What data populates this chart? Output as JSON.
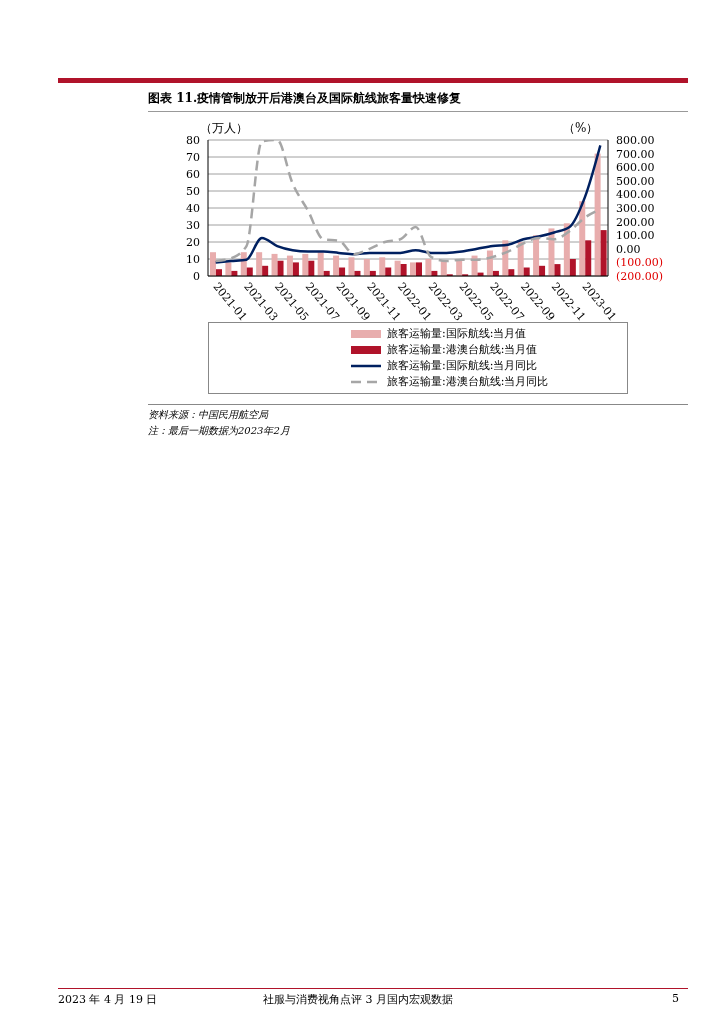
{
  "chart_data": {
    "type": "bar",
    "title": "图表 11.疫情管制放开后港澳台及国际航线旅客量快速修复",
    "ylabel": "（万人）",
    "y2label": "（%）",
    "categories": [
      "2021-01",
      null,
      "2021-03",
      null,
      "2021-05",
      null,
      "2021-07",
      null,
      "2021-09",
      null,
      "2021-11",
      null,
      "2022-01",
      null,
      "2022-03",
      null,
      "2022-05",
      null,
      "2022-07",
      null,
      "2022-09",
      null,
      "2022-11",
      null,
      "2023-01",
      null
    ],
    "series": [
      {
        "name": "旅客运输量:国际航线:当月值",
        "color": "#e8adad",
        "values": [
          14,
          8,
          14,
          14,
          13,
          12,
          13,
          14,
          12,
          11,
          10,
          11,
          9,
          8,
          10,
          9,
          9,
          12,
          15,
          21,
          20,
          24,
          28,
          31,
          44,
          72
        ]
      },
      {
        "name": "旅客运输量:港澳台航线:当月值",
        "color": "#b0132a",
        "values": [
          4,
          3,
          5,
          6,
          9,
          8,
          9,
          3,
          5,
          3,
          3,
          5,
          7,
          8,
          3,
          1,
          1,
          2,
          3,
          4,
          5,
          6,
          7,
          10,
          21,
          27
        ]
      },
      {
        "name": "旅客运输量:国际航线:当月同比",
        "type": "line",
        "axis": "y2",
        "color": "#002060",
        "line_style": "solid",
        "values": [
          -100,
          -90,
          -80,
          80,
          20,
          -10,
          -20,
          -20,
          -30,
          -40,
          -30,
          -30,
          -30,
          -10,
          -30,
          -30,
          -20,
          0,
          20,
          30,
          70,
          90,
          120,
          160,
          380,
          760
        ]
      },
      {
        "name": "旅客运输量:港澳台航线:当月同比",
        "type": "line",
        "axis": "y2",
        "color": "#a6a6a6",
        "line_style": "dashed",
        "values": [
          -90,
          -70,
          20,
          790,
          800,
          480,
          280,
          70,
          60,
          -40,
          0,
          50,
          70,
          160,
          -60,
          -90,
          -80,
          -80,
          -60,
          -20,
          40,
          80,
          70,
          130,
          230,
          290
        ]
      }
    ],
    "ylim": [
      0,
      80
    ],
    "yticks": [
      0,
      10,
      20,
      30,
      40,
      50,
      60,
      70,
      80
    ],
    "y2lim": [
      -200,
      800
    ],
    "y2ticks": [
      {
        "value": -200,
        "label": "(200.00)"
      },
      {
        "value": -100,
        "label": "(100.00)"
      },
      {
        "value": 0,
        "label": "0.00"
      },
      {
        "value": 100,
        "label": "100.00"
      },
      {
        "value": 200,
        "label": "200.00"
      },
      {
        "value": 300,
        "label": "300.00"
      },
      {
        "value": 400,
        "label": "400.00"
      },
      {
        "value": 500,
        "label": "500.00"
      },
      {
        "value": 600,
        "label": "600.00"
      },
      {
        "value": 700,
        "label": "700.00"
      },
      {
        "value": 800,
        "label": "800.00"
      }
    ],
    "grid": "y",
    "legend": "bottom",
    "marker": "none",
    "annotations": [
      "资料来源：中国民用航空局",
      "注：最后一期数据为2023年2月",
      "2023 年 4 月 19 日",
      "社服与消费视角点评 3 月国内宏观数据",
      "5"
    ]
  }
}
